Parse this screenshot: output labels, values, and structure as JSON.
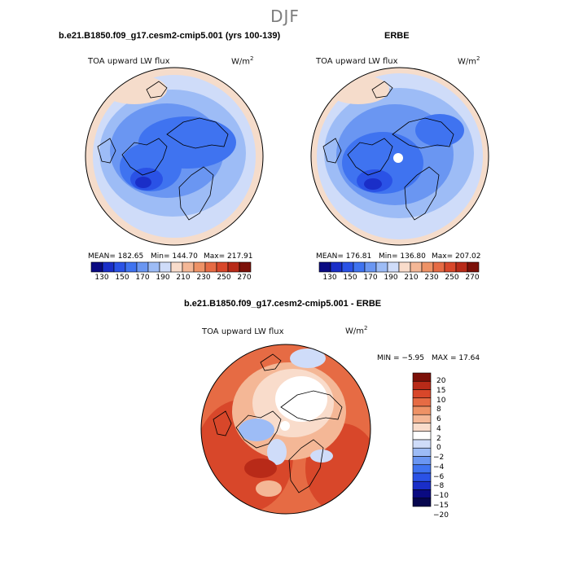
{
  "title": "DJF",
  "chart_data": [
    {
      "type": "heatmap",
      "projection": "north polar stereographic",
      "title": "b.e21.B1850.f09_g17.cesm2-cmip5.001 (yrs 100-139)",
      "left_label": "TOA upward LW flux",
      "units_base": "W/m",
      "units_exp": "2",
      "stats": {
        "mean": "MEAN= 182.65",
        "min": "Min= 144.70",
        "max": "Max= 217.91"
      },
      "colorbar_ticks": [
        "130",
        "150",
        "170",
        "190",
        "210",
        "230",
        "250",
        "270"
      ],
      "colorbar_colors": [
        "#0a0a82",
        "#1a2ec8",
        "#2a52e6",
        "#3f73f0",
        "#6a96f2",
        "#9dbcf6",
        "#cfdcf9",
        "#f9dccb",
        "#f4b796",
        "#ee9266",
        "#e66b44",
        "#d8472a",
        "#b82a18",
        "#7c1008"
      ]
    },
    {
      "type": "heatmap",
      "projection": "north polar stereographic",
      "title": "ERBE",
      "left_label": "TOA upward LW flux",
      "units_base": "W/m",
      "units_exp": "2",
      "stats": {
        "mean": "MEAN= 176.81",
        "min": "Min= 136.80",
        "max": "Max= 207.02"
      },
      "colorbar_ticks": [
        "130",
        "150",
        "170",
        "190",
        "210",
        "230",
        "250",
        "270"
      ],
      "colorbar_colors": [
        "#0a0a82",
        "#1a2ec8",
        "#2a52e6",
        "#3f73f0",
        "#6a96f2",
        "#9dbcf6",
        "#cfdcf9",
        "#f9dccb",
        "#f4b796",
        "#ee9266",
        "#e66b44",
        "#d8472a",
        "#b82a18",
        "#7c1008"
      ]
    },
    {
      "type": "heatmap",
      "projection": "north polar stereographic",
      "title": "b.e21.B1850.f09_g17.cesm2-cmip5.001 - ERBE",
      "left_label": "TOA upward LW flux",
      "units_base": "W/m",
      "units_exp": "2",
      "stats": {
        "min": "MIN =  −5.95",
        "max": "MAX =  17.64"
      },
      "colorbar_ticks": [
        "20",
        "15",
        "10",
        "8",
        "6",
        "4",
        "2",
        "0",
        "−2",
        "−4",
        "−6",
        "−8",
        "−10",
        "−15",
        "−20"
      ],
      "colorbar_colors": [
        "#7c1008",
        "#b82a18",
        "#d8472a",
        "#e66b44",
        "#ee9266",
        "#f4b796",
        "#f9dccb",
        "#ffffff",
        "#cfdcf9",
        "#9dbcf6",
        "#6a96f2",
        "#3f73f0",
        "#2a52e6",
        "#1a2ec8",
        "#0a0a82",
        "#06064e"
      ]
    }
  ]
}
